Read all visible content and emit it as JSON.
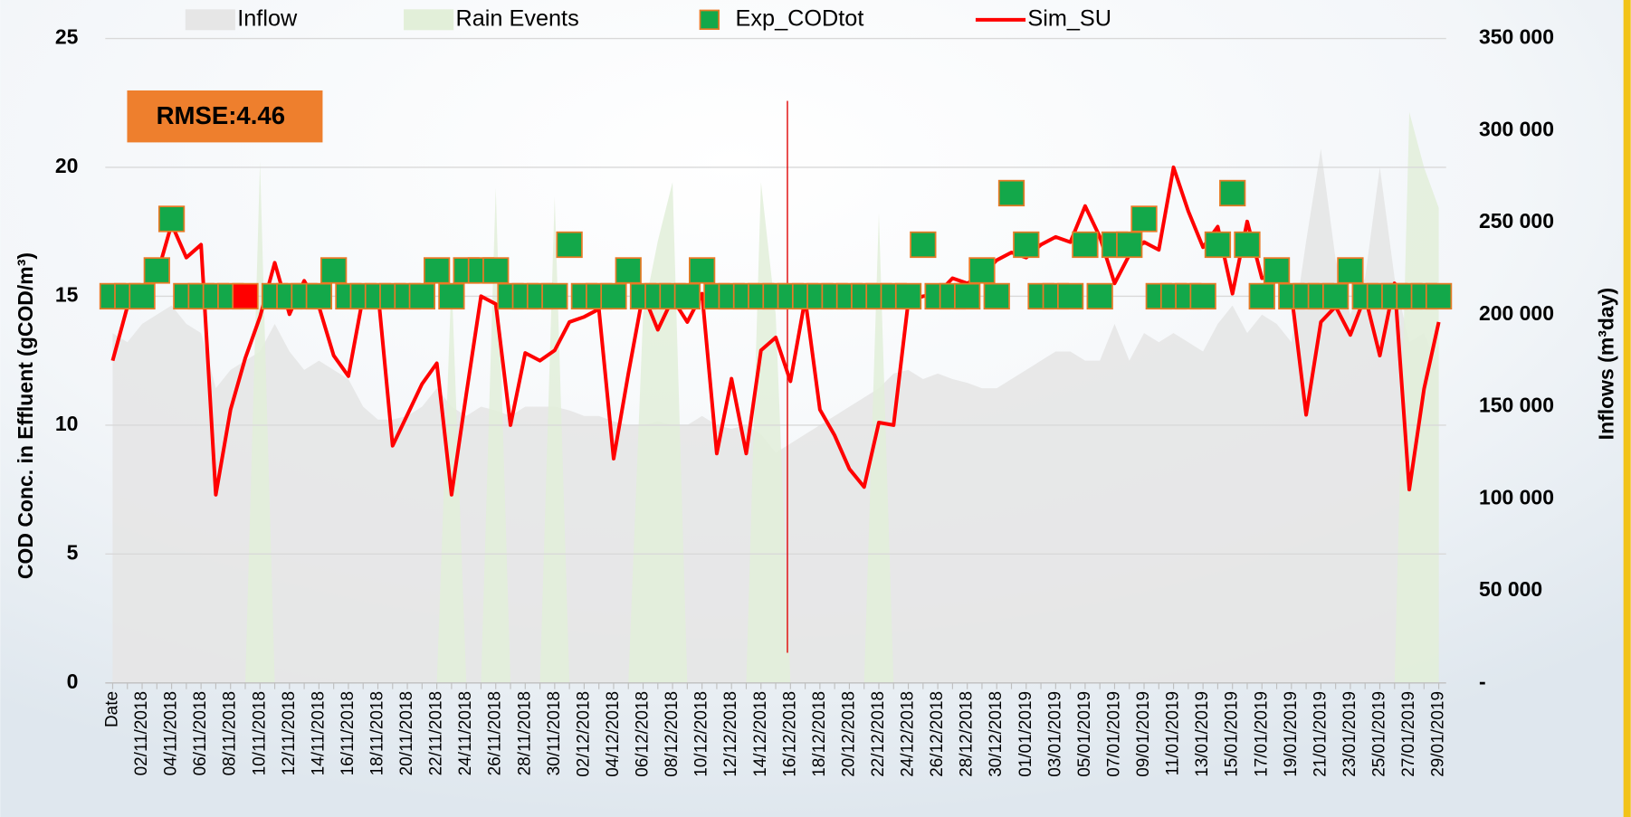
{
  "chart_data": {
    "type": "line",
    "annotation": "RMSE:4.46",
    "y_label": "COD Conc. in Effluent (gCOD/m³)",
    "y2_label": "Inflows (m³day)",
    "categories": [
      "Date",
      null,
      "02/11/2018",
      null,
      "04/11/2018",
      null,
      "06/11/2018",
      null,
      "08/11/2018",
      null,
      "10/11/2018",
      null,
      "12/11/2018",
      null,
      "14/11/2018",
      null,
      "16/11/2018",
      null,
      "18/11/2018",
      null,
      "20/11/2018",
      null,
      "22/11/2018",
      null,
      "24/11/2018",
      null,
      "26/11/2018",
      null,
      "28/11/2018",
      null,
      "30/11/2018",
      null,
      "02/12/2018",
      null,
      "04/12/2018",
      null,
      "06/12/2018",
      null,
      "08/12/2018",
      null,
      "10/12/2018",
      null,
      "12/12/2018",
      null,
      "14/12/2018",
      null,
      "16/12/2018",
      null,
      "18/12/2018",
      null,
      "20/12/2018",
      null,
      "22/12/2018",
      null,
      "24/12/2018",
      null,
      "26/12/2018",
      null,
      "28/12/2018",
      null,
      "30/12/2018",
      null,
      "01/01/2019",
      null,
      "03/01/2019",
      null,
      "05/01/2019",
      null,
      "07/01/2019",
      null,
      "09/01/2019",
      null,
      "11/01/2019",
      null,
      "13/01/2019",
      null,
      "15/01/2019",
      null,
      "17/01/2019",
      null,
      "19/01/2019",
      null,
      "21/01/2019",
      null,
      "23/01/2019",
      null,
      "25/01/2019",
      null,
      "27/01/2019",
      null,
      "29/01/2019"
    ],
    "series": [
      {
        "name": "Inflow",
        "kind": "area",
        "axis": "y2",
        "color": "#e6e6e6",
        "values": [
          190000,
          185000,
          195000,
          200000,
          205000,
          195000,
          190000,
          160000,
          170000,
          175000,
          180000,
          195000,
          180000,
          170000,
          175000,
          170000,
          165000,
          150000,
          143000,
          143000,
          145000,
          150000,
          160000,
          150000,
          145000,
          150000,
          148000,
          145000,
          150000,
          150000,
          150000,
          148000,
          145000,
          145000,
          142000,
          140000,
          140000,
          142000,
          140000,
          140000,
          145000,
          140000,
          138000,
          140000,
          135000,
          125000,
          130000,
          135000,
          140000,
          145000,
          150000,
          155000,
          160000,
          168000,
          170000,
          165000,
          168000,
          165000,
          163000,
          160000,
          160000,
          165000,
          170000,
          175000,
          180000,
          180000,
          175000,
          175000,
          195000,
          175000,
          190000,
          185000,
          190000,
          185000,
          180000,
          195000,
          205000,
          190000,
          200000,
          195000,
          185000,
          240000,
          290000,
          230000,
          200000,
          220000,
          280000,
          220000,
          185000,
          190000,
          170000
        ]
      },
      {
        "name": "Rain Events",
        "kind": "area",
        "axis": "y2",
        "color": "#e2efd9",
        "values": [
          0,
          0,
          0,
          0,
          0,
          0,
          0,
          0,
          0,
          0,
          283000,
          0,
          0,
          0,
          0,
          0,
          0,
          0,
          0,
          0,
          0,
          0,
          0,
          220000,
          0,
          0,
          269000,
          0,
          0,
          0,
          264000,
          0,
          0,
          0,
          0,
          0,
          200000,
          240000,
          272000,
          0,
          0,
          0,
          0,
          0,
          272000,
          200000,
          0,
          0,
          0,
          0,
          0,
          0,
          255000,
          0,
          0,
          0,
          0,
          0,
          0,
          0,
          0,
          0,
          0,
          0,
          0,
          0,
          0,
          0,
          0,
          0,
          0,
          0,
          0,
          0,
          0,
          0,
          0,
          0,
          0,
          0,
          0,
          0,
          0,
          0,
          0,
          0,
          0,
          0,
          310000,
          280000,
          258000
        ]
      },
      {
        "name": "Exp_CODtot",
        "kind": "marker",
        "color": "#13a84a",
        "edge_color": "#e87a25",
        "highlight_index": 9,
        "highlight_color": "#ff0000",
        "values": [
          15,
          15,
          15,
          16,
          18,
          15,
          15,
          15,
          15,
          15,
          null,
          15,
          15,
          15,
          15,
          16,
          15,
          15,
          15,
          15,
          15,
          15,
          16,
          15,
          16,
          16,
          16,
          15,
          15,
          15,
          15,
          17,
          15,
          15,
          15,
          16,
          15,
          15,
          15,
          15,
          16,
          15,
          15,
          15,
          15,
          15,
          15,
          15,
          15,
          15,
          15,
          15,
          15,
          15,
          15,
          17,
          15,
          15,
          15,
          16,
          15,
          19,
          17,
          15,
          15,
          15,
          17,
          15,
          17,
          17,
          18,
          15,
          15,
          15,
          15,
          17,
          19,
          17,
          15,
          16,
          15,
          15,
          15,
          15,
          16,
          15,
          15,
          15,
          15,
          15,
          15
        ]
      },
      {
        "name": "Sim_SU",
        "kind": "line",
        "color": "#ff0000",
        "values": [
          12.5,
          14.6,
          15,
          15.8,
          17.8,
          16.5,
          17,
          7.3,
          10.6,
          12.6,
          14.2,
          16.3,
          14.3,
          15.6,
          14.6,
          12.7,
          11.9,
          15,
          15.2,
          9.2,
          10.4,
          11.6,
          12.4,
          7.3,
          11.2,
          15,
          14.7,
          10,
          12.8,
          12.5,
          12.9,
          14,
          14.2,
          14.5,
          8.7,
          12,
          15.1,
          13.7,
          14.9,
          14,
          15.1,
          8.9,
          11.8,
          8.9,
          12.9,
          13.4,
          11.7,
          14.9,
          10.6,
          9.6,
          8.3,
          7.6,
          10.1,
          10,
          14.8,
          15,
          15.1,
          15.7,
          15.5,
          15.8,
          16.4,
          16.7,
          16.5,
          17,
          17.3,
          17.1,
          18.5,
          17.3,
          15.5,
          16.6,
          17.1,
          16.8,
          20,
          18.3,
          16.9,
          17.7,
          15.1,
          17.9,
          15.7,
          15.8,
          15.1,
          10.4,
          14,
          14.6,
          13.5,
          15,
          12.7,
          15.5,
          7.5,
          11.4,
          14
        ]
      }
    ],
    "ylim": [
      0,
      25
    ],
    "yticks": [
      0,
      5,
      10,
      15,
      20,
      25
    ],
    "y2lim": [
      0,
      350000
    ],
    "y2ticks": [
      {
        "value": 0,
        "label": "-"
      },
      {
        "value": 50000,
        "label": "50 000"
      },
      {
        "value": 100000,
        "label": "100 000"
      },
      {
        "value": 150000,
        "label": "150 000"
      },
      {
        "value": 200000,
        "label": "200 000"
      },
      {
        "value": 250000,
        "label": "250 000"
      },
      {
        "value": 300000,
        "label": "300 000"
      },
      {
        "value": 350000,
        "label": "350 000"
      }
    ],
    "grid": true,
    "legend": "top"
  }
}
